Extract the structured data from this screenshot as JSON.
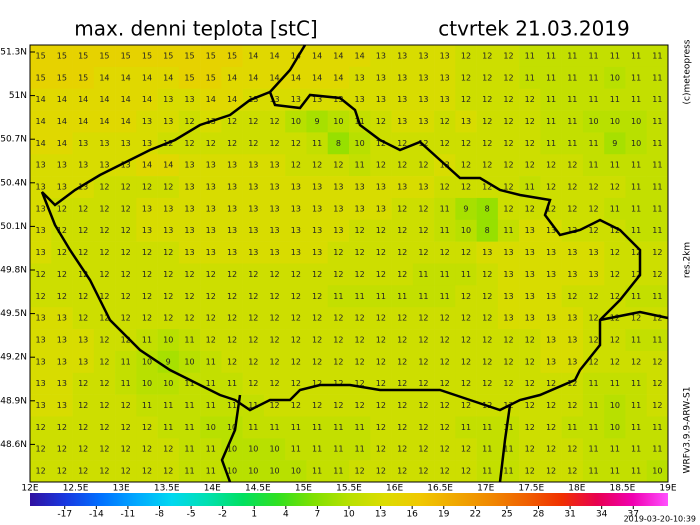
{
  "map": {
    "title": "max. denni teplota [stC]",
    "date": "ctvrtek 21.03.2019",
    "lat_labels": [
      "51.3N",
      "51N",
      "50.7N",
      "50.4N",
      "50.1N",
      "49.8N",
      "49.5N",
      "49.2N",
      "48.9N",
      "48.6N"
    ],
    "lon_labels": [
      "12E",
      "12.5E",
      "13E",
      "13.5E",
      "14E",
      "14.5E",
      "15E",
      "15.5E",
      "16E",
      "16.5E",
      "17E",
      "17.5E",
      "18E",
      "18.5E",
      "19E"
    ],
    "credits": [
      "(c)meteopress",
      "res.2km",
      "WRFv3.9.9-ARW-S1"
    ],
    "timestamp": "2019-03-20-10:39",
    "colorbar": {
      "lim": [
        -20.3,
        40.3
      ],
      "ticks": [
        -17,
        -14,
        -11,
        -8,
        -5,
        -2,
        1,
        4,
        7,
        10,
        13,
        16,
        19,
        22,
        25,
        28,
        31,
        34,
        37
      ]
    },
    "grid": {
      "rows": [
        [
          15,
          15,
          15,
          15,
          15,
          15,
          15,
          15,
          15,
          15,
          14,
          14,
          14,
          14,
          14,
          14,
          13,
          13,
          13,
          13,
          12,
          12,
          12,
          11,
          11,
          11,
          11,
          11,
          11,
          11
        ],
        [
          15,
          15,
          15,
          14,
          14,
          14,
          14,
          15,
          15,
          14,
          14,
          14,
          14,
          14,
          14,
          13,
          13,
          13,
          13,
          13,
          12,
          12,
          12,
          11,
          11,
          11,
          11,
          10,
          11,
          11
        ],
        [
          14,
          14,
          14,
          14,
          14,
          14,
          13,
          13,
          14,
          14,
          13,
          13,
          13,
          13,
          13,
          13,
          13,
          13,
          13,
          13,
          12,
          12,
          12,
          12,
          11,
          11,
          11,
          11,
          11,
          11
        ],
        [
          14,
          14,
          14,
          14,
          14,
          13,
          13,
          12,
          13,
          12,
          12,
          12,
          10,
          9,
          10,
          11,
          12,
          13,
          13,
          12,
          13,
          12,
          12,
          12,
          11,
          11,
          10,
          10,
          10,
          11
        ],
        [
          14,
          14,
          13,
          13,
          13,
          13,
          12,
          12,
          12,
          12,
          12,
          12,
          12,
          11,
          8,
          10,
          12,
          12,
          12,
          12,
          12,
          12,
          12,
          12,
          11,
          11,
          11,
          9,
          10,
          11
        ],
        [
          13,
          13,
          13,
          13,
          13,
          14,
          14,
          13,
          13,
          13,
          13,
          13,
          12,
          12,
          12,
          11,
          12,
          12,
          12,
          13,
          12,
          12,
          12,
          12,
          12,
          12,
          11,
          11,
          11,
          11
        ],
        [
          13,
          13,
          13,
          12,
          12,
          12,
          12,
          13,
          13,
          13,
          13,
          13,
          13,
          13,
          13,
          13,
          13,
          13,
          13,
          12,
          12,
          12,
          12,
          11,
          12,
          12,
          12,
          12,
          11,
          11
        ],
        [
          13,
          12,
          12,
          12,
          12,
          13,
          13,
          13,
          13,
          13,
          13,
          13,
          13,
          13,
          13,
          13,
          13,
          12,
          12,
          11,
          9,
          8,
          12,
          12,
          12,
          12,
          12,
          11,
          11,
          11
        ],
        [
          13,
          12,
          12,
          12,
          12,
          13,
          13,
          13,
          13,
          13,
          13,
          13,
          13,
          13,
          13,
          12,
          12,
          12,
          12,
          11,
          10,
          8,
          11,
          13,
          13,
          12,
          12,
          12,
          11,
          11
        ],
        [
          13,
          12,
          12,
          12,
          12,
          12,
          12,
          13,
          13,
          13,
          13,
          13,
          13,
          13,
          12,
          12,
          12,
          12,
          12,
          12,
          12,
          13,
          13,
          13,
          13,
          13,
          13,
          12,
          12,
          12
        ],
        [
          12,
          12,
          12,
          12,
          12,
          12,
          12,
          12,
          12,
          12,
          12,
          12,
          12,
          12,
          12,
          12,
          12,
          12,
          11,
          11,
          11,
          12,
          13,
          13,
          13,
          13,
          13,
          12,
          12,
          12
        ],
        [
          12,
          12,
          12,
          12,
          12,
          12,
          12,
          12,
          12,
          12,
          12,
          12,
          12,
          12,
          11,
          11,
          11,
          11,
          11,
          11,
          12,
          12,
          13,
          13,
          13,
          12,
          12,
          12,
          11,
          11
        ],
        [
          13,
          13,
          12,
          12,
          12,
          12,
          12,
          12,
          12,
          12,
          12,
          12,
          12,
          12,
          12,
          12,
          12,
          12,
          12,
          12,
          12,
          12,
          13,
          13,
          13,
          13,
          12,
          12,
          12,
          12
        ],
        [
          13,
          13,
          13,
          12,
          12,
          11,
          10,
          11,
          12,
          12,
          12,
          12,
          12,
          12,
          12,
          12,
          12,
          12,
          12,
          12,
          12,
          12,
          12,
          12,
          13,
          13,
          12,
          12,
          11,
          11
        ],
        [
          13,
          13,
          13,
          12,
          11,
          10,
          9,
          10,
          11,
          12,
          12,
          12,
          12,
          12,
          12,
          12,
          12,
          12,
          12,
          12,
          12,
          12,
          12,
          12,
          13,
          13,
          12,
          12,
          12,
          12
        ],
        [
          13,
          13,
          12,
          12,
          11,
          10,
          10,
          11,
          11,
          11,
          12,
          12,
          12,
          12,
          12,
          12,
          12,
          12,
          12,
          12,
          12,
          12,
          12,
          12,
          12,
          12,
          11,
          11,
          11,
          12
        ],
        [
          13,
          13,
          12,
          12,
          12,
          11,
          11,
          11,
          11,
          11,
          11,
          12,
          12,
          12,
          12,
          12,
          12,
          12,
          12,
          12,
          12,
          12,
          12,
          12,
          12,
          12,
          11,
          10,
          11,
          12
        ],
        [
          12,
          12,
          12,
          12,
          12,
          12,
          11,
          11,
          10,
          10,
          11,
          11,
          11,
          11,
          11,
          11,
          12,
          12,
          12,
          12,
          11,
          11,
          11,
          12,
          12,
          11,
          11,
          10,
          11,
          11
        ],
        [
          12,
          12,
          12,
          12,
          12,
          12,
          12,
          11,
          11,
          10,
          10,
          10,
          11,
          11,
          11,
          11,
          12,
          12,
          12,
          12,
          12,
          11,
          11,
          12,
          12,
          12,
          11,
          11,
          11,
          11
        ],
        [
          12,
          12,
          12,
          12,
          12,
          12,
          12,
          11,
          11,
          10,
          10,
          10,
          10,
          11,
          11,
          12,
          12,
          12,
          12,
          12,
          12,
          11,
          11,
          12,
          12,
          12,
          11,
          11,
          11,
          10
        ]
      ]
    }
  }
}
